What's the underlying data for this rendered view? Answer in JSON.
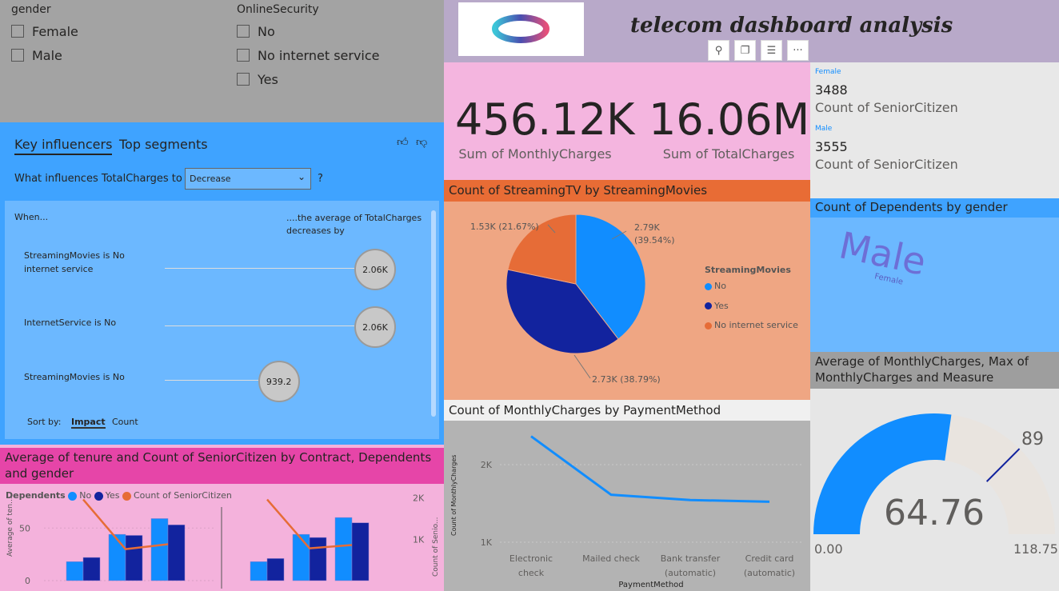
{
  "slicers": {
    "gender": {
      "title": "gender",
      "options": [
        "Female",
        "Male"
      ]
    },
    "online_security": {
      "title": "OnlineSecurity",
      "options": [
        "No",
        "No internet service",
        "Yes"
      ]
    }
  },
  "header": {
    "title": "telecom dashboard analysis",
    "toolbar": [
      "pin",
      "copy",
      "filter",
      "more"
    ]
  },
  "key_influencers": {
    "tabs": [
      "Key influencers",
      "Top segments"
    ],
    "question": "What influences TotalCharges to",
    "dropdown": "Decrease",
    "question_mark": "?",
    "when": "When...",
    "avg_label": "....the average of TotalCharges decreases by",
    "rows": [
      {
        "label": "StreamingMovies is No internet service",
        "value": "2.06K",
        "fraction": 1
      },
      {
        "label": "InternetService is No",
        "value": "2.06K",
        "fraction": 1
      },
      {
        "label": "StreamingMovies is No",
        "value": "939.2",
        "fraction": 0.3
      }
    ],
    "sort_by": "Sort by:",
    "sort_options": [
      "Impact",
      "Count"
    ]
  },
  "kpis": [
    {
      "value": "456.12K",
      "label": "Sum of MonthlyCharges"
    },
    {
      "value": "16.06M",
      "label": "Sum of TotalCharges"
    }
  ],
  "cards": [
    {
      "title": "Female",
      "value": "3488",
      "label": "Count of SeniorCitizen"
    },
    {
      "title": "Male",
      "value": "3555",
      "label": "Count of SeniorCitizen"
    }
  ],
  "dependents": {
    "title": "Count of Dependents by gender",
    "words": [
      "Male",
      "Female"
    ]
  },
  "gauge": {
    "title": "Average of MonthlyCharges, Max of MonthlyCharges and Measure",
    "value": 64.76,
    "value_label": "64.76",
    "min": 0,
    "min_label": "0.00",
    "max": 118.75,
    "max_label": "118.75",
    "target": 89,
    "target_label": "89"
  },
  "chart_data": [
    {
      "type": "pie",
      "title": "Count of StreamingTV by StreamingMovies",
      "legend_title": "StreamingMovies",
      "legend_position": "right",
      "slices": [
        {
          "name": "No",
          "value": 2790,
          "label": "2.79K",
          "pct": "(39.54%)",
          "color": "#118dff"
        },
        {
          "name": "Yes",
          "value": 2730,
          "label": "2.73K (38.79%)",
          "pct": "",
          "color": "#12239e"
        },
        {
          "name": "No internet service",
          "value": 1530,
          "label": "1.53K (21.67%)",
          "pct": "",
          "color": "#e66c37"
        }
      ]
    },
    {
      "type": "line",
      "title": "Count of MonthlyCharges by PaymentMethod",
      "xlabel": "PaymentMethod",
      "ylabel": "Count of MonthlyCharges",
      "categories": [
        [
          "Electronic",
          "check"
        ],
        [
          "Mailed check"
        ],
        [
          "Bank transfer",
          "(automatic)"
        ],
        [
          "Credit card",
          "(automatic)"
        ]
      ],
      "values": [
        2365,
        1612,
        1544,
        1522
      ],
      "yticks": [
        {
          "v": 1000,
          "l": "1K"
        },
        {
          "v": 2000,
          "l": "2K"
        }
      ],
      "ylim": [
        900,
        2600
      ],
      "color": "#118dff"
    },
    {
      "type": "bar",
      "title": "Average of tenure and Count of SeniorCitizen by Contract, Dependents and gender",
      "legend_title": "Dependents",
      "legend": [
        {
          "name": "No",
          "color": "#118dff"
        },
        {
          "name": "Yes",
          "color": "#12239e"
        },
        {
          "name": "Count of SeniorCitizen",
          "color": "#e66c37"
        }
      ],
      "ylabel": "Average of ten...",
      "y2label": "Count of Senio...",
      "yticks": [
        {
          "v": 0,
          "l": "0"
        },
        {
          "v": 50,
          "l": "50"
        }
      ],
      "y2ticks": [
        {
          "v": 1000,
          "l": "1K"
        },
        {
          "v": 2000,
          "l": "2K"
        }
      ],
      "ylim": [
        0,
        70
      ],
      "y2lim": [
        0,
        2400
      ],
      "panels": [
        {
          "no": [
            18,
            22
          ],
          "yes": [
            0,
            0
          ],
          "groups": [
            [
              18,
              22
            ],
            [
              44,
              43
            ],
            [
              59,
              53
            ]
          ],
          "line": [
            1960,
            760,
            880
          ]
        },
        {
          "groups": [
            [
              18,
              21
            ],
            [
              44,
              41
            ],
            [
              60,
              55
            ]
          ],
          "line": [
            1960,
            780,
            860
          ]
        }
      ]
    }
  ]
}
